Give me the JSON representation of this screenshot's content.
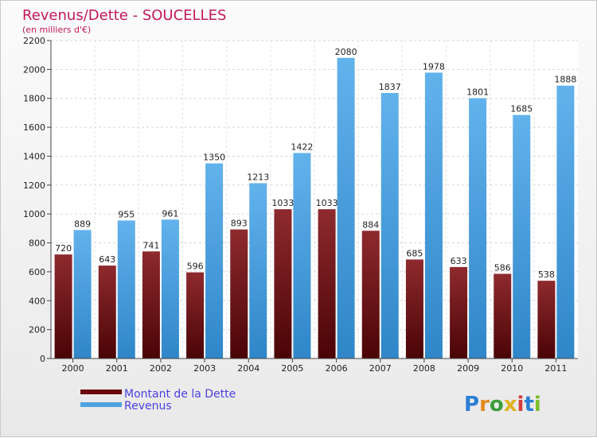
{
  "chart_data": {
    "type": "bar",
    "title": "Revenus/Dette - SOUCELLES",
    "subtitle": "(en milliers d'€)",
    "categories": [
      "2000",
      "2001",
      "2002",
      "2003",
      "2004",
      "2005",
      "2006",
      "2007",
      "2008",
      "2009",
      "2010",
      "2011"
    ],
    "series": [
      {
        "name": "Montant de la Dette",
        "values": [
          720,
          643,
          741,
          596,
          893,
          1033,
          1033,
          884,
          685,
          633,
          586,
          538
        ],
        "color": "#6b0a0d"
      },
      {
        "name": "Revenus",
        "values": [
          889,
          955,
          961,
          1350,
          1213,
          1422,
          2080,
          1837,
          1978,
          1801,
          1685,
          1888
        ],
        "color": "#4da3e0"
      }
    ],
    "ylim": [
      0,
      2200
    ],
    "yticks": [
      0,
      200,
      400,
      600,
      800,
      1000,
      1200,
      1400,
      1600,
      1800,
      2000,
      2200
    ],
    "grid": true,
    "legend": "bottom-left"
  },
  "brand": {
    "text": "Proxiti"
  }
}
